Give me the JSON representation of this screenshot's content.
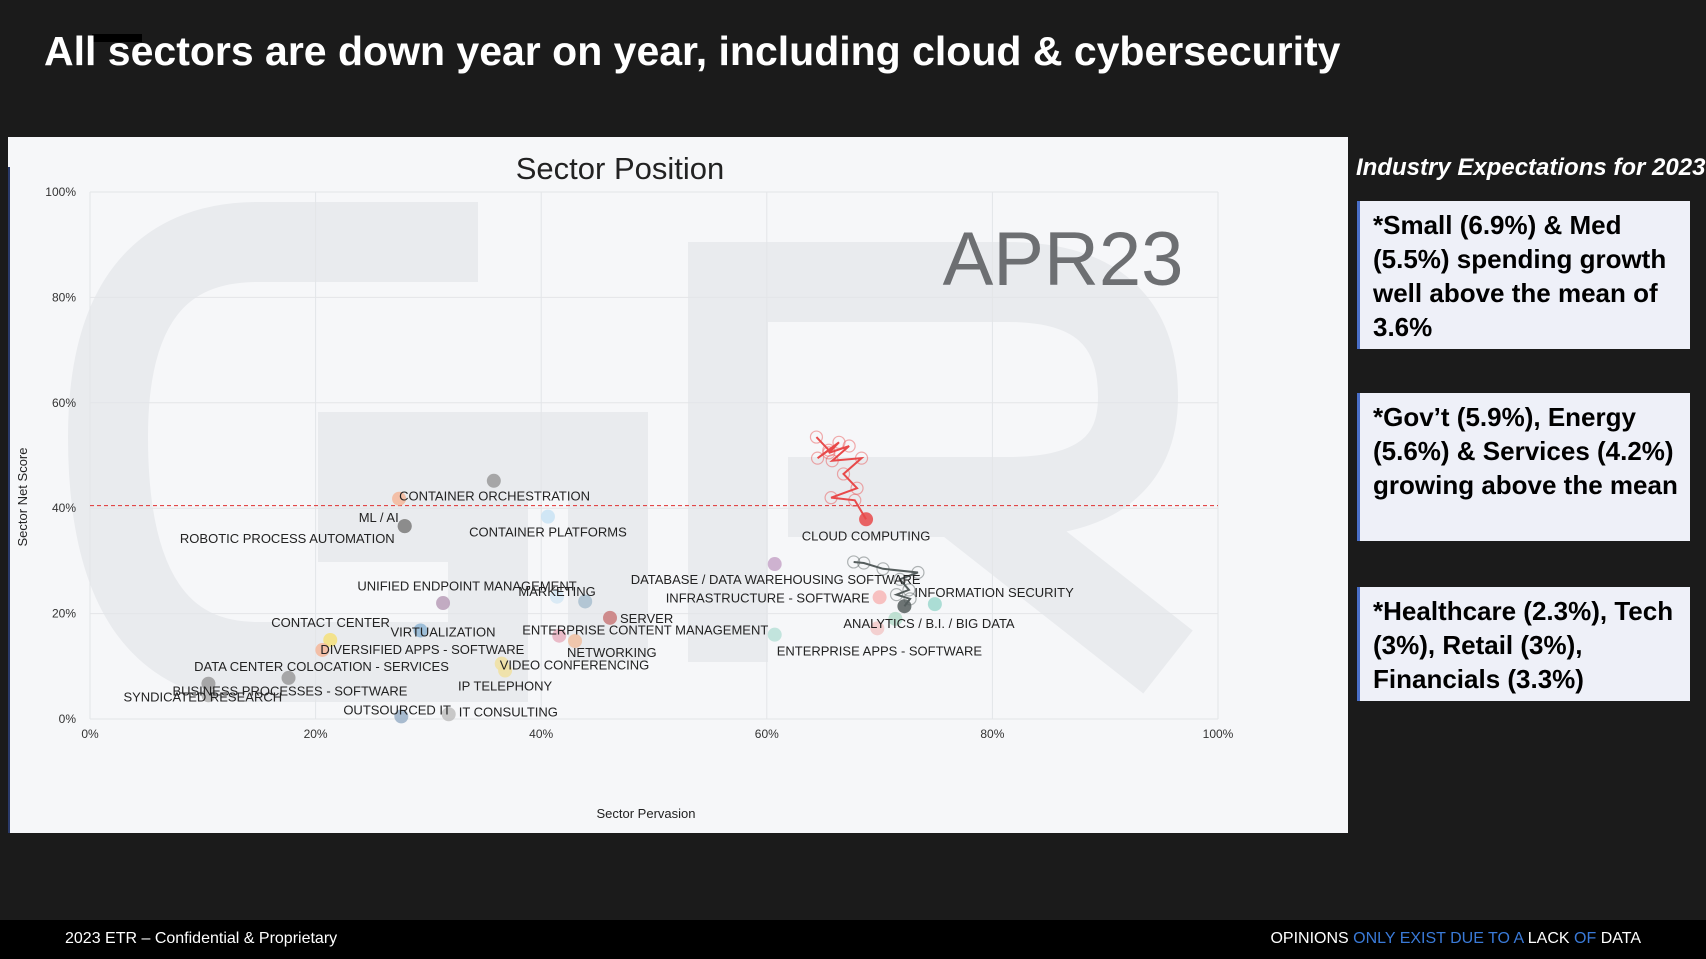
{
  "slide": {
    "title": "All sectors are down year on year, including cloud & cybersecurity"
  },
  "side_panel": {
    "title": "Industry Expectations for 2023",
    "boxes": [
      "*Small (6.9%) & Med (5.5%) spending growth well above the mean of 3.6%",
      "*Gov’t (5.9%), Energy (5.6%) & Services (4.2%) growing above the mean",
      "*Healthcare (2.3%), Tech (3%), Retail (3%), Financials (3.3%)"
    ],
    "accent_color": "#4a6fc8"
  },
  "footer": {
    "left": "2023 ETR – Confidential & Proprietary",
    "right_words": [
      {
        "text": "OPINIONS",
        "color": "#ffffff"
      },
      {
        "text": "ONLY EXIST DUE TO A",
        "color": "#3a7ad8"
      },
      {
        "text": "LACK",
        "color": "#ffffff"
      },
      {
        "text": "OF",
        "color": "#3a7ad8"
      },
      {
        "text": "DATA",
        "color": "#ffffff"
      }
    ]
  },
  "chart_data": {
    "type": "scatter",
    "title": "Sector Position",
    "watermark": "APR23",
    "xlabel": "Sector Pervasion",
    "ylabel": "Sector Net Score",
    "xlim": [
      0,
      100
    ],
    "ylim": [
      0,
      100
    ],
    "x_ticks": [
      "0%",
      "20%",
      "40%",
      "60%",
      "80%",
      "100%"
    ],
    "y_ticks": [
      "0%",
      "20%",
      "40%",
      "60%",
      "80%",
      "100%"
    ],
    "grid": true,
    "reference_line": {
      "y": 40.5,
      "color": "#e03030",
      "style": "dashed"
    },
    "points": [
      {
        "label": "CONTAINER ORCHESTRATION",
        "x": 27.4,
        "y": 41.8,
        "color": "#f4b79a"
      },
      {
        "label": "",
        "x": 35.8,
        "y": 45.2,
        "color": "#9a9a9a"
      },
      {
        "label": "ML / AI",
        "x": 27.9,
        "y": 36.6,
        "color": "#8a8a8a"
      },
      {
        "label": "ROBOTIC PROCESS AUTOMATION",
        "x": 27.9,
        "y": 36.6,
        "color": "#8a8a8a"
      },
      {
        "label": "CONTAINER PLATFORMS",
        "x": 40.6,
        "y": 38.4,
        "color": "#c9e3f5"
      },
      {
        "label": "CLOUD COMPUTING",
        "x": 68.8,
        "y": 37.9,
        "color": "#e84a4a"
      },
      {
        "label": "DATABASE / DATA WAREHOUSING SOFTWARE",
        "x": 60.7,
        "y": 29.4,
        "color": "#c7a6c9"
      },
      {
        "label": "UNIFIED ENDPOINT MANAGEMENT",
        "x": 41.4,
        "y": 23.2,
        "color": "#d5e7f5"
      },
      {
        "label": "",
        "x": 43.9,
        "y": 22.3,
        "color": "#a9bfcf"
      },
      {
        "label": "INFRASTRUCTURE - SOFTWARE",
        "x": 70.0,
        "y": 23.1,
        "color": "#f7b6b6"
      },
      {
        "label": "INFORMATION SECURITY",
        "x": 72.2,
        "y": 21.4,
        "color": "#555d5d"
      },
      {
        "label": "",
        "x": 74.9,
        "y": 21.8,
        "color": "#9ed8cf"
      },
      {
        "label": "ANALYTICS / B.I. / BIG DATA",
        "x": 71.4,
        "y": 19.0,
        "color": "#b5dccb"
      },
      {
        "label": "",
        "x": 69.8,
        "y": 17.2,
        "color": "#f2c9c9"
      },
      {
        "label": "MARKETING",
        "x": 31.3,
        "y": 22.0,
        "color": "#b89db8"
      },
      {
        "label": "SERVER",
        "x": 46.1,
        "y": 19.2,
        "color": "#c97a7a"
      },
      {
        "label": "VIRTUALIZATION",
        "x": 29.3,
        "y": 16.8,
        "color": "#8fb6d4"
      },
      {
        "label": "ENTERPRISE CONTENT MANAGEMENT",
        "x": 41.6,
        "y": 15.8,
        "color": "#e8b0c0"
      },
      {
        "label": "NETWORKING",
        "x": 43.0,
        "y": 14.8,
        "color": "#f0c0a0"
      },
      {
        "label": "ENTERPRISE APPS - SOFTWARE",
        "x": 60.7,
        "y": 16.0,
        "color": "#b8e0d8"
      },
      {
        "label": "CONTACT CENTER",
        "x": 21.3,
        "y": 15.0,
        "color": "#f5e07a"
      },
      {
        "label": "DIVERSIFIED APPS - SOFTWARE",
        "x": 20.6,
        "y": 13.1,
        "color": "#f4b79a"
      },
      {
        "label": "VIDEO CONFERENCING",
        "x": 36.5,
        "y": 10.5,
        "color": "#f0e0a0"
      },
      {
        "label": "IP TELEPHONY",
        "x": 36.8,
        "y": 9.2,
        "color": "#f0e0a0"
      },
      {
        "label": "DATA CENTER COLOCATION - SERVICES",
        "x": 17.6,
        "y": 7.8,
        "color": "#9a9a9a"
      },
      {
        "label": "BUSINESS PROCESSES - SOFTWARE",
        "x": 10.5,
        "y": 6.7,
        "color": "#9a9a9a"
      },
      {
        "label": "SYNDICATED RESEARCH",
        "x": 10.5,
        "y": 4.5,
        "color": "#b0b0b0"
      },
      {
        "label": "OUTSOURCED IT",
        "x": 27.6,
        "y": 0.5,
        "color": "#9ab0c8"
      },
      {
        "label": "IT CONSULTING",
        "x": 31.8,
        "y": 0.9,
        "color": "#c0c0c0"
      }
    ],
    "trails": [
      {
        "name": "CLOUD COMPUTING",
        "color": "#e84a4a",
        "x": [
          64.4,
          65.5,
          64.5,
          66.4,
          65.5,
          67.3,
          65.8,
          68.4,
          66.8,
          68.0,
          65.7,
          67.8,
          68.8
        ],
        "y": [
          53.5,
          51.0,
          49.5,
          52.5,
          50.5,
          51.8,
          49.0,
          49.5,
          46.5,
          43.8,
          42.0,
          41.5,
          37.9
        ]
      },
      {
        "name": "INFORMATION SECURITY",
        "color": "#555d5d",
        "x": [
          67.7,
          68.6,
          70.3,
          73.4,
          71.8,
          72.6,
          71.5,
          72.7,
          72.2
        ],
        "y": [
          29.8,
          29.6,
          28.5,
          27.8,
          26.5,
          24.5,
          23.6,
          22.8,
          21.4
        ]
      }
    ]
  }
}
